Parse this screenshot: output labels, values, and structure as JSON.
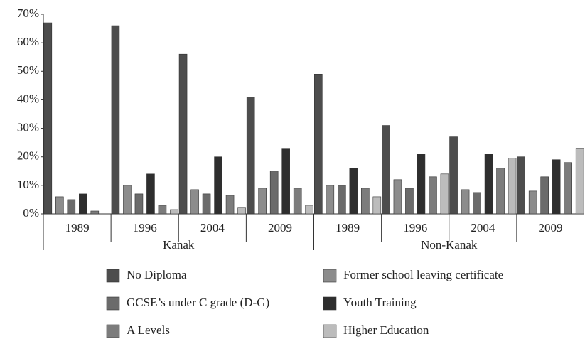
{
  "chart_data": {
    "type": "bar",
    "categories": [
      "1989",
      "1996",
      "2004",
      "2009",
      "1989",
      "1996",
      "2004",
      "2009"
    ],
    "groups": [
      {
        "label": "Kanak",
        "size": 4
      },
      {
        "label": "Non-Kanak",
        "size": 4
      }
    ],
    "series": [
      {
        "name": "No Diploma",
        "color": "#4d4d4d",
        "values": [
          67,
          66,
          56,
          41,
          49,
          31,
          27,
          20
        ]
      },
      {
        "name": "Former school leaving certificate",
        "color": "#8c8c8c",
        "values": [
          6,
          10,
          8.5,
          9,
          10,
          12,
          8.5,
          8
        ]
      },
      {
        "name": "GCSE’s under C grade (D-G)",
        "color": "#6b6b6b",
        "values": [
          5,
          7,
          7,
          15,
          10,
          9,
          7.5,
          13
        ]
      },
      {
        "name": "Youth Training",
        "color": "#2e2e2e",
        "values": [
          7,
          14,
          20,
          23,
          16,
          21,
          21,
          19
        ]
      },
      {
        "name": "A Levels",
        "color": "#7c7c7c",
        "values": [
          1,
          3,
          6.5,
          9,
          9,
          13,
          16,
          18
        ]
      },
      {
        "name": "Higher Education",
        "color": "#bcbcbc",
        "values": [
          0,
          1.5,
          2.3,
          3,
          6,
          14,
          19.5,
          23
        ]
      }
    ],
    "ylim": [
      0,
      70
    ],
    "yticks": [
      {
        "value": 0,
        "label": "0%"
      },
      {
        "value": 10,
        "label": "10%"
      },
      {
        "value": 20,
        "label": "20%"
      },
      {
        "value": 30,
        "label": "30%"
      },
      {
        "value": 40,
        "label": "40%"
      },
      {
        "value": 50,
        "label": "50%"
      },
      {
        "value": 60,
        "label": "60%"
      },
      {
        "value": 70,
        "label": "70%"
      }
    ]
  }
}
